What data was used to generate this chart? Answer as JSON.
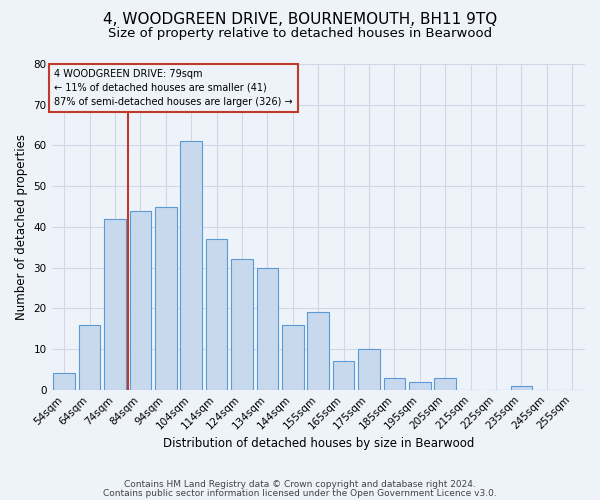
{
  "title": "4, WOODGREEN DRIVE, BOURNEMOUTH, BH11 9TQ",
  "subtitle": "Size of property relative to detached houses in Bearwood",
  "xlabel": "Distribution of detached houses by size in Bearwood",
  "ylabel": "Number of detached properties",
  "bar_labels": [
    "54sqm",
    "64sqm",
    "74sqm",
    "84sqm",
    "94sqm",
    "104sqm",
    "114sqm",
    "124sqm",
    "134sqm",
    "144sqm",
    "155sqm",
    "165sqm",
    "175sqm",
    "185sqm",
    "195sqm",
    "205sqm",
    "215sqm",
    "225sqm",
    "235sqm",
    "245sqm",
    "255sqm"
  ],
  "bar_values": [
    4,
    16,
    42,
    44,
    45,
    61,
    37,
    32,
    30,
    16,
    19,
    7,
    10,
    3,
    2,
    3,
    0,
    0,
    1,
    0,
    0
  ],
  "bar_color": "#c9d9ed",
  "bar_edge_color": "#5b9bd5",
  "grid_color": "#d0d8e8",
  "background_color": "#eef2f9",
  "marker_line_color": "#c0392b",
  "annotation_title": "4 WOODGREEN DRIVE: 79sqm",
  "annotation_line1": "← 11% of detached houses are smaller (41)",
  "annotation_line2": "87% of semi-detached houses are larger (326) →",
  "annotation_box_color": "#c0392b",
  "ylim": [
    0,
    80
  ],
  "yticks": [
    0,
    10,
    20,
    30,
    40,
    50,
    60,
    70,
    80
  ],
  "footnote1": "Contains HM Land Registry data © Crown copyright and database right 2024.",
  "footnote2": "Contains public sector information licensed under the Open Government Licence v3.0.",
  "title_fontsize": 11,
  "subtitle_fontsize": 9.5,
  "label_fontsize": 8.5,
  "tick_fontsize": 7.5,
  "footnote_fontsize": 6.5,
  "annotation_fontsize": 7
}
